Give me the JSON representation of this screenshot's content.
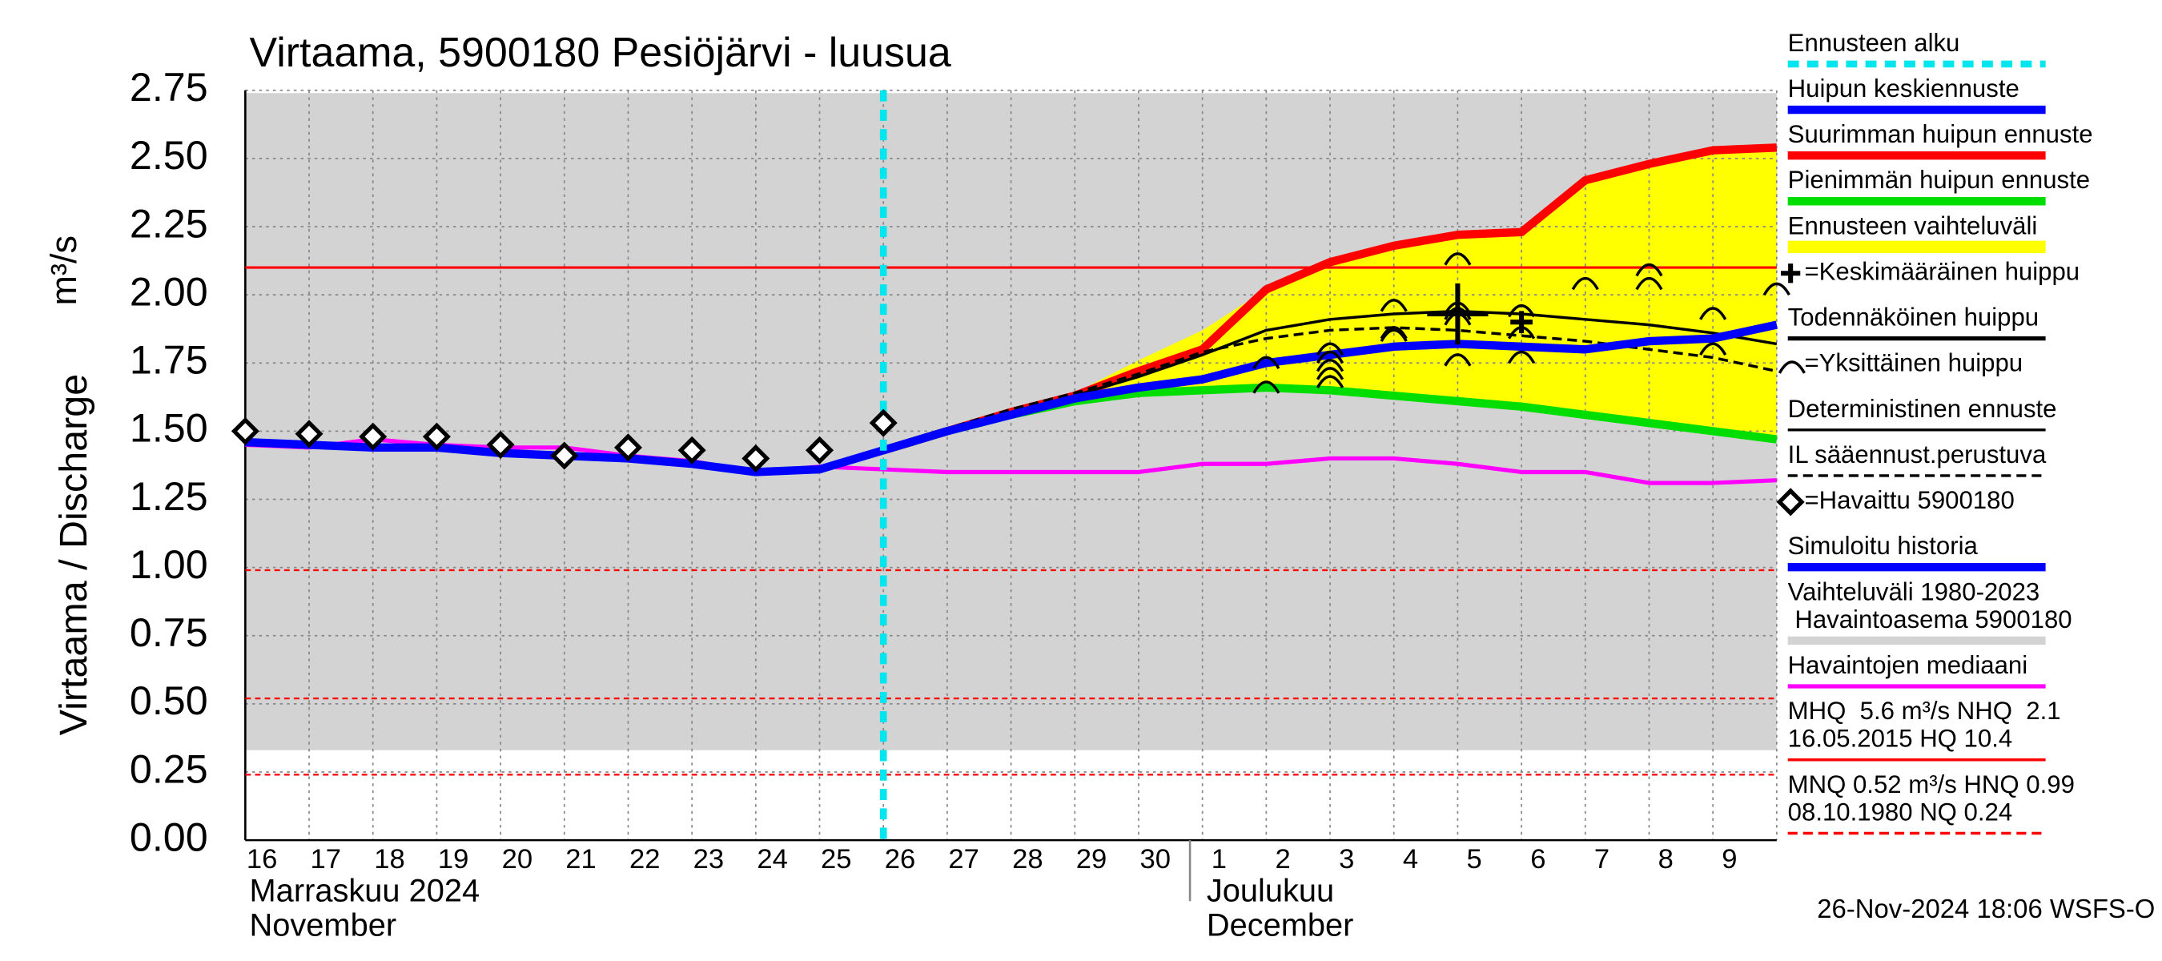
{
  "chart_data": {
    "type": "line",
    "title": "Virtaama, 5900180 Pesiöjärvi - luusua",
    "ylabel": "Virtaama / Discharge",
    "yunit": "m³/s",
    "categories": [
      "16",
      "17",
      "18",
      "19",
      "20",
      "21",
      "22",
      "23",
      "24",
      "25",
      "26",
      "27",
      "28",
      "29",
      "30",
      "1",
      "2",
      "3",
      "4",
      "5",
      "6",
      "7",
      "8",
      "9",
      null
    ],
    "months": [
      {
        "text": [
          "Marraskuu 2024",
          "November"
        ],
        "start": "16"
      },
      {
        "text": [
          "Joulukuu",
          "December"
        ],
        "start": "1"
      }
    ],
    "forecast_start": "26",
    "forecast_color": "#00e5ee",
    "ylim": [
      0,
      2.75
    ],
    "yticks": [
      {
        "value": 0,
        "label": "0.00"
      },
      0.25,
      {
        "value": 0.5,
        "label": "0.50"
      },
      0.75,
      {
        "value": 1,
        "label": "1.00"
      },
      1.25,
      {
        "value": 1.5,
        "label": "1.50"
      },
      1.75,
      {
        "value": 2,
        "label": "2.00"
      },
      2.25,
      {
        "value": 2.5,
        "label": "2.50"
      },
      2.75
    ],
    "grid": true,
    "band": {
      "color": "#d3d3d3",
      "lower": [
        0.33,
        0.33,
        0.33,
        0.33,
        0.33,
        0.33,
        0.33,
        0.33,
        0.33,
        0.33,
        0.33,
        0.33,
        0.33,
        0.33,
        0.33,
        0.33,
        0.33,
        0.33,
        0.33,
        0.33,
        0.33,
        0.33,
        0.33,
        0.33,
        0.33
      ],
      "upper": [
        2.74,
        2.74,
        2.74,
        2.74,
        2.74,
        2.74,
        2.74,
        2.74,
        2.74,
        2.74,
        2.74,
        2.74,
        2.74,
        2.74,
        2.74,
        2.74,
        2.74,
        2.74,
        2.74,
        2.74,
        2.74,
        2.74,
        2.74,
        2.74,
        2.74
      ]
    },
    "range": {
      "color": "#ffff00",
      "lower": [
        null,
        null,
        null,
        null,
        null,
        null,
        null,
        null,
        null,
        null,
        1.43,
        1.5,
        1.56,
        1.61,
        1.64,
        1.65,
        1.66,
        1.65,
        1.63,
        1.61,
        1.59,
        1.56,
        1.53,
        1.5,
        1.47
      ],
      "upper": [
        null,
        null,
        null,
        null,
        null,
        null,
        null,
        null,
        null,
        null,
        1.43,
        1.5,
        1.57,
        1.64,
        1.76,
        1.87,
        2.02,
        2.12,
        2.18,
        2.22,
        2.23,
        2.42,
        2.48,
        2.53,
        2.54
      ]
    },
    "hlines": [
      {
        "value": 2.1,
        "dashed": false
      },
      {
        "value": 0.99,
        "dashed": true
      },
      {
        "value": 0.52,
        "dashed": true
      },
      {
        "value": 0.24,
        "dashed": true
      }
    ],
    "hline_color": "#ff0000",
    "series": [
      {
        "color": "#ff00ff",
        "style": "medium",
        "values": [
          1.45,
          1.44,
          1.47,
          1.45,
          1.44,
          1.44,
          1.41,
          1.39,
          1.35,
          1.37,
          1.36,
          1.35,
          1.35,
          1.35,
          1.35,
          1.38,
          1.38,
          1.4,
          1.4,
          1.38,
          1.35,
          1.35,
          1.31,
          1.31,
          1.32
        ]
      },
      {
        "color": "#0000ff",
        "style": "thick",
        "values": [
          1.46,
          1.45,
          1.44,
          1.44,
          1.42,
          1.41,
          1.4,
          1.38,
          1.35,
          1.36,
          1.43,
          null,
          null,
          null,
          null,
          null,
          null,
          null,
          null,
          null,
          null,
          null,
          null,
          null,
          null
        ]
      },
      {
        "color": "#00dd00",
        "style": "thick",
        "values": [
          null,
          null,
          null,
          null,
          null,
          null,
          null,
          null,
          null,
          null,
          1.43,
          1.5,
          1.56,
          1.61,
          1.64,
          1.65,
          1.66,
          1.65,
          1.63,
          1.61,
          1.59,
          1.56,
          1.53,
          1.5,
          1.47
        ]
      },
      {
        "color": "#ff0000",
        "style": "thick",
        "values": [
          null,
          null,
          null,
          null,
          null,
          null,
          null,
          null,
          null,
          null,
          1.43,
          1.5,
          1.57,
          1.63,
          1.72,
          1.8,
          2.02,
          2.12,
          2.18,
          2.22,
          2.23,
          2.42,
          2.48,
          2.53,
          2.54
        ]
      },
      {
        "color": "#000000",
        "style": "thin",
        "values": [
          null,
          null,
          null,
          null,
          null,
          null,
          null,
          null,
          null,
          null,
          1.43,
          1.5,
          1.57,
          1.63,
          1.7,
          1.78,
          1.87,
          1.91,
          1.93,
          1.94,
          1.93,
          1.91,
          1.89,
          1.86,
          1.82
        ]
      },
      {
        "color": "#000000",
        "style": "dashed",
        "values": [
          null,
          null,
          null,
          null,
          null,
          null,
          null,
          null,
          null,
          null,
          1.43,
          1.51,
          1.58,
          1.64,
          1.71,
          1.79,
          1.84,
          1.87,
          1.88,
          1.87,
          1.85,
          1.83,
          1.8,
          1.77,
          1.72
        ]
      },
      {
        "color": "#0000ff",
        "style": "thick",
        "values": [
          null,
          null,
          null,
          null,
          null,
          null,
          null,
          null,
          null,
          null,
          1.43,
          1.5,
          1.56,
          1.62,
          1.66,
          1.69,
          1.75,
          1.78,
          1.81,
          1.82,
          1.81,
          1.8,
          1.83,
          1.84,
          1.89
        ]
      }
    ],
    "observed": {
      "color": "#000000",
      "values": [
        1.5,
        1.49,
        1.48,
        1.48,
        1.45,
        1.41,
        1.44,
        1.43,
        1.4,
        1.43,
        1.53,
        null,
        null,
        null,
        null,
        null,
        null,
        null,
        null,
        null,
        null,
        null,
        null,
        null,
        null
      ]
    },
    "peaks": {
      "color": "#000000",
      "values": [
        null,
        null,
        null,
        null,
        null,
        null,
        null,
        null,
        null,
        null,
        null,
        null,
        null,
        null,
        null,
        null,
        [
          1.74,
          1.65
        ],
        [
          1.79,
          1.76,
          1.73,
          1.7,
          1.67
        ],
        [
          1.95,
          1.85,
          1.84
        ],
        [
          2.12,
          1.94,
          1.92,
          1.9,
          1.75
        ],
        [
          1.93,
          1.85,
          1.76
        ],
        [
          2.03
        ],
        [
          2.08,
          2.03
        ],
        [
          1.92,
          1.79
        ],
        [
          2.01
        ]
      ]
    },
    "mean_peaks": {
      "color": "#000000",
      "values": [
        null,
        null,
        null,
        null,
        null,
        null,
        null,
        null,
        null,
        null,
        null,
        null,
        null,
        null,
        null,
        null,
        null,
        null,
        null,
        1.93,
        1.9,
        null,
        null,
        null,
        null
      ]
    },
    "legend": [
      {
        "text": [
          "Ennusteen alku"
        ],
        "color": "#00e5ee",
        "style": "dashed-thick"
      },
      {
        "text": [
          "Huipun keskiennuste"
        ],
        "color": "#0000ff",
        "style": "thick"
      },
      {
        "text": [
          "Suurimman huipun ennuste"
        ],
        "color": "#ff0000",
        "style": "thick"
      },
      {
        "text": [
          "Pienimmän huipun ennuste"
        ],
        "color": "#00dd00",
        "style": "thick"
      },
      {
        "text": [
          "Ennusteen vaihteluväli"
        ],
        "color": "#ffff00",
        "style": "thick"
      },
      {
        "text": [
          "=Keskimääräinen huippu"
        ],
        "color": "#000000",
        "style": "plus"
      },
      {
        "text": [
          "Todennäköinen huippu"
        ],
        "color": "#000000",
        "style": "medium"
      },
      {
        "text": [
          "=Yksittäinen huippu"
        ],
        "color": "#000000",
        "style": "arc"
      },
      {
        "text": [
          "Deterministinen ennuste"
        ],
        "color": "#000000",
        "style": "thin"
      },
      {
        "text": [
          "IL sääennust.perustuva"
        ],
        "color": "#000000",
        "style": "dashed"
      },
      {
        "text": [
          "=Havaittu 5900180"
        ],
        "color": "#000000",
        "style": "diamond"
      },
      {
        "text": [
          "Simuloitu historia"
        ],
        "color": "#0000ff",
        "style": "thick"
      },
      {
        "text": [
          "Vaihteluväli 1980-2023",
          " Havaintoasema 5900180"
        ],
        "color": "#d3d3d3",
        "style": "thick"
      },
      {
        "text": [
          "Havaintojen mediaani"
        ],
        "color": "#ff00ff",
        "style": "medium"
      },
      {
        "text": [
          "MHQ  5.6 m³/s NHQ  2.1",
          "16.05.2015 HQ 10.4"
        ],
        "color": "#ff0000",
        "style": "thin"
      },
      {
        "text": [
          "MNQ 0.52 m³/s HNQ 0.99",
          "08.10.1980 NQ 0.24"
        ],
        "color": "#ff0000",
        "style": "dashed"
      }
    ],
    "footer": "26-Nov-2024 18:06 WSFS-O"
  }
}
